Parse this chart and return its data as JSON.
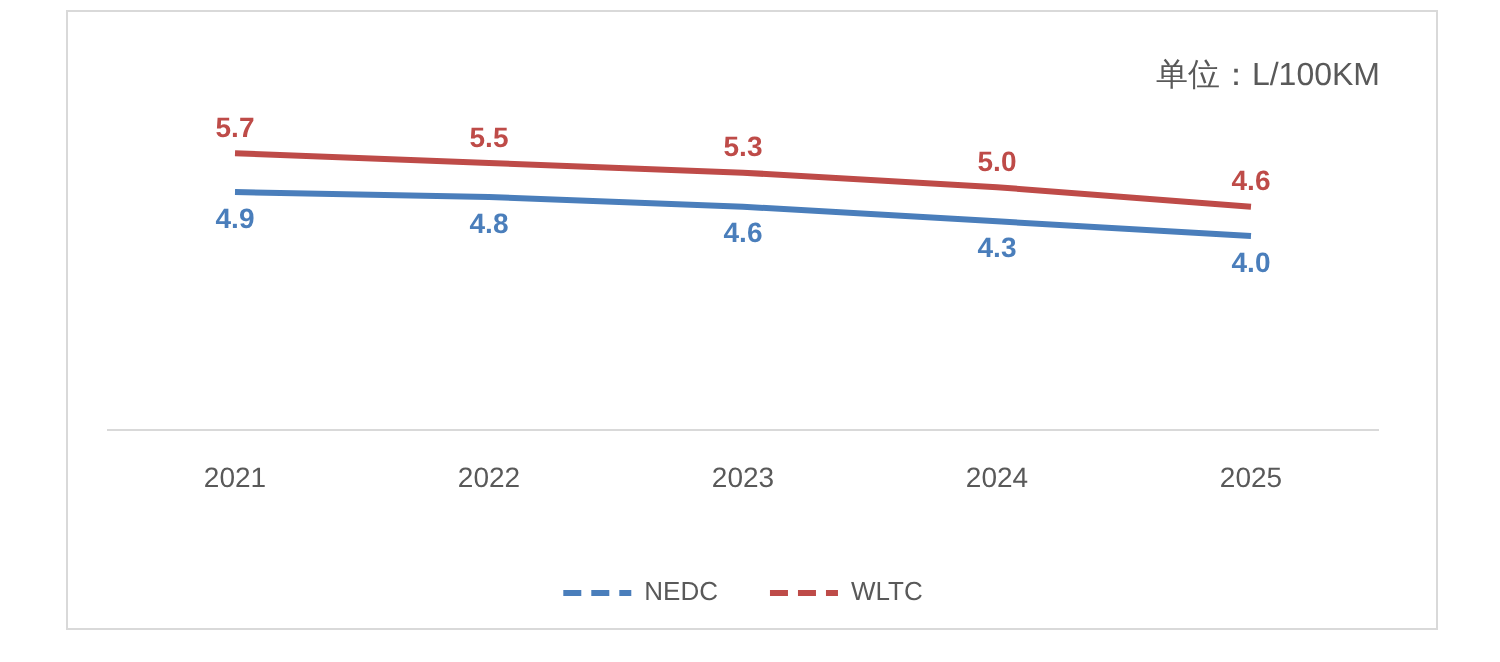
{
  "chart_data": {
    "type": "line",
    "categories": [
      "2021",
      "2022",
      "2023",
      "2024",
      "2025"
    ],
    "series": [
      {
        "name": "NEDC",
        "color": "#4a7ebb",
        "values": [
          4.9,
          4.8,
          4.6,
          4.3,
          4.0
        ],
        "value_labels": [
          "4.9",
          "4.8",
          "4.6",
          "4.3",
          "4.0"
        ]
      },
      {
        "name": "WLTC",
        "color": "#be4b48",
        "values": [
          5.7,
          5.5,
          5.3,
          5.0,
          4.6
        ],
        "value_labels": [
          "5.7",
          "5.5",
          "5.3",
          "5.0",
          "4.6"
        ]
      }
    ],
    "tick_labels": "x",
    "grid": false,
    "legend": "bottom",
    "line_style": "solid",
    "annotations": [
      "单位：L/100KM"
    ]
  }
}
